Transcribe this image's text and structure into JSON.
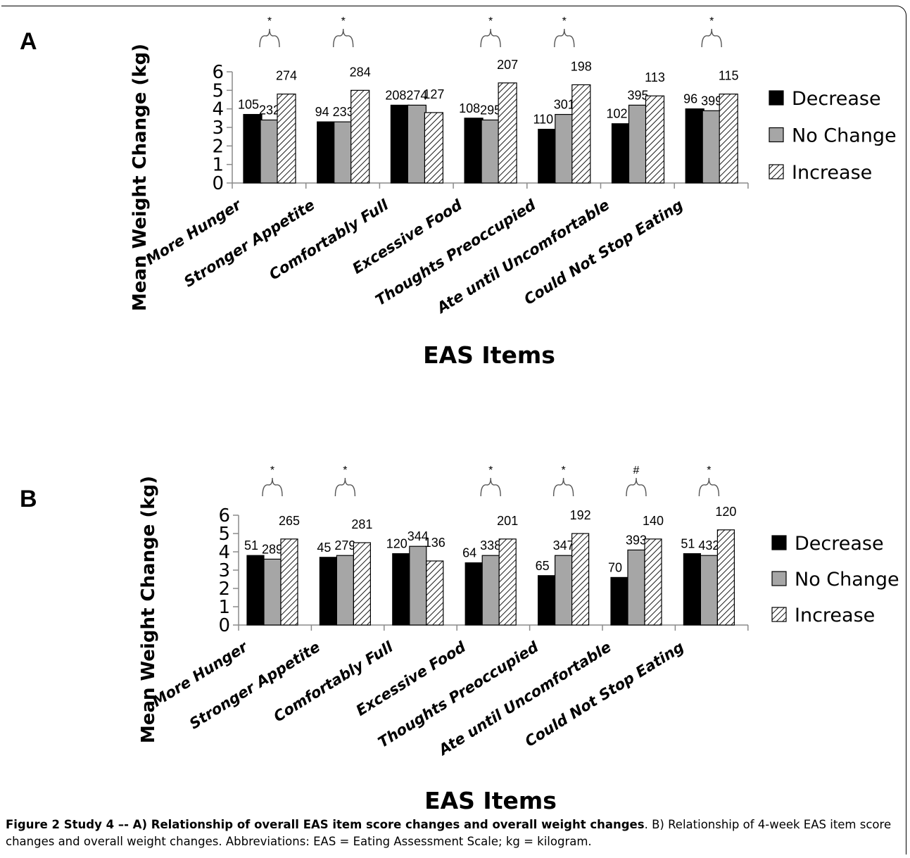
{
  "caption": {
    "bold": "Figure 2 Study 4 –- A) Relationship of overall EAS item score changes and overall weight changes",
    "rest": ". B) Relationship of 4-week EAS item score changes and overall weight changes. Abbreviations: EAS = Eating Assessment Scale; kg = kilogram."
  },
  "colors": {
    "decrease": "#000000",
    "no_change": "#a6a6a6",
    "increase_hatch": "#000000"
  },
  "chart_data": [
    {
      "panel_label": "A",
      "type": "bar",
      "ylabel": "Mean Weight Change (kg)",
      "xlabel": "EAS Items",
      "ylim": [
        0,
        6
      ],
      "yticks": [
        "0",
        "1",
        "2",
        "3",
        "4",
        "5",
        "6"
      ],
      "legend_position": "right",
      "categories": [
        "More Hunger",
        "Stronger Appetite",
        "Comfortably Full",
        "Excessive Food",
        "Thoughts Preoccupied",
        "Ate until Uncomfortable",
        "Could Not Stop Eating"
      ],
      "series": [
        {
          "name": "Decrease",
          "values": [
            3.7,
            3.3,
            4.2,
            3.5,
            2.9,
            3.2,
            4.0
          ],
          "labels": [
            "105",
            "94",
            "208",
            "108",
            "110",
            "102",
            "96"
          ]
        },
        {
          "name": "No Change",
          "values": [
            3.4,
            3.3,
            4.2,
            3.4,
            3.7,
            4.2,
            3.9
          ],
          "labels": [
            "232",
            "233",
            "274",
            "295",
            "301",
            "395",
            "399"
          ]
        },
        {
          "name": "Increase",
          "values": [
            4.8,
            5.0,
            3.8,
            5.4,
            5.3,
            4.7,
            4.8
          ],
          "labels": [
            "274",
            "284",
            "127",
            "207",
            "198",
            "113",
            "115"
          ]
        }
      ],
      "significance": [
        "*",
        "*",
        "",
        "*",
        "*",
        "",
        "*"
      ]
    },
    {
      "panel_label": "B",
      "type": "bar",
      "ylabel": "Mean Weight Change (kg)",
      "xlabel": "EAS Items",
      "ylim": [
        0,
        6
      ],
      "yticks": [
        "0",
        "1",
        "2",
        "3",
        "4",
        "5",
        "6"
      ],
      "legend_position": "right",
      "categories": [
        "More Hunger",
        "Stronger Appetite",
        "Comfortably Full",
        "Excessive Food",
        "Thoughts Preoccupied",
        "Ate until Uncomfortable",
        "Could Not Stop Eating"
      ],
      "series": [
        {
          "name": "Decrease",
          "values": [
            3.8,
            3.7,
            3.9,
            3.4,
            2.7,
            2.6,
            3.9
          ],
          "labels": [
            "51",
            "45",
            "120",
            "64",
            "65",
            "70",
            "51"
          ]
        },
        {
          "name": "No Change",
          "values": [
            3.6,
            3.8,
            4.3,
            3.8,
            3.8,
            4.1,
            3.8
          ],
          "labels": [
            "289",
            "279",
            "344",
            "338",
            "347",
            "393",
            "432"
          ]
        },
        {
          "name": "Increase",
          "values": [
            4.7,
            4.5,
            3.5,
            4.7,
            5.0,
            4.7,
            5.2
          ],
          "labels": [
            "265",
            "281",
            "136",
            "201",
            "192",
            "140",
            "120"
          ]
        }
      ],
      "significance": [
        "*",
        "*",
        "",
        "*",
        "*",
        "#",
        "*"
      ]
    }
  ]
}
